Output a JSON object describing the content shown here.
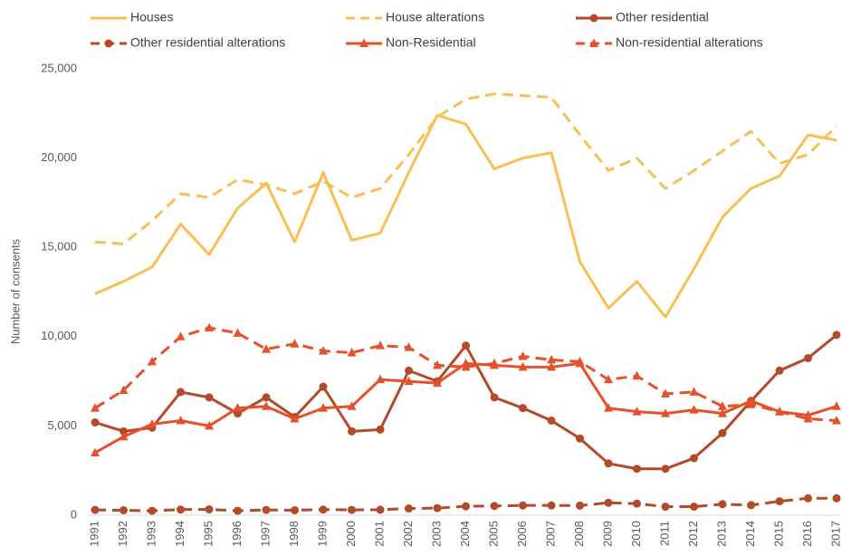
{
  "chart_data": {
    "type": "line",
    "y_label": "Number of consents",
    "categories": [
      "1991",
      "1992",
      "1993",
      "1994",
      "1995",
      "1996",
      "1997",
      "1998",
      "1999",
      "2000",
      "2001",
      "2002",
      "2003",
      "2004",
      "2005",
      "2006",
      "2007",
      "2008",
      "2009",
      "2010",
      "2011",
      "2012",
      "2013",
      "2014",
      "2015",
      "2016",
      "2017"
    ],
    "ylim": [
      0,
      25000
    ],
    "yticks": [
      0,
      {
        "value": 5000,
        "label": "5,000"
      },
      {
        "value": 10000,
        "label": "10,000"
      },
      {
        "value": 15000,
        "label": "15,000"
      },
      {
        "value": 20000,
        "label": "20,000"
      },
      {
        "value": 25000,
        "label": "25,000"
      }
    ],
    "grid": false,
    "legend": "top",
    "series": [
      {
        "name": "Houses",
        "color": "#f9bf55",
        "dashed": false,
        "marker": null,
        "values": [
          12400,
          13100,
          13900,
          16300,
          14600,
          17200,
          18600,
          15300,
          19200,
          15400,
          15800,
          19200,
          22400,
          21900,
          19400,
          20000,
          20300,
          14200,
          11600,
          13100,
          11100,
          13800,
          16700,
          18300,
          19000,
          21300,
          21000
        ]
      },
      {
        "name": "House alterations",
        "color": "#f9bf55",
        "dashed": true,
        "marker": null,
        "values": [
          15300,
          15200,
          16500,
          18000,
          17800,
          18800,
          18500,
          18000,
          18700,
          17800,
          18300,
          20200,
          22300,
          23300,
          23600,
          23500,
          23400,
          21300,
          19300,
          20000,
          18300,
          19300,
          20400,
          21500,
          19700,
          20200,
          21800
        ]
      },
      {
        "name": "Other residential",
        "color": "#b34a2a",
        "dashed": false,
        "marker": "circle",
        "values": [
          5200,
          4700,
          4900,
          6900,
          6600,
          5700,
          6600,
          5500,
          7200,
          4700,
          4800,
          8100,
          7500,
          9500,
          6600,
          6000,
          5300,
          4300,
          2900,
          2600,
          2600,
          3200,
          4600,
          6400,
          8100,
          8800,
          10100
        ]
      },
      {
        "name": "Other residential alterations",
        "color": "#b34a2a",
        "dashed": true,
        "marker": "circle",
        "values": [
          300,
          280,
          250,
          320,
          330,
          250,
          300,
          280,
          320,
          300,
          310,
          380,
          400,
          500,
          520,
          550,
          550,
          540,
          700,
          650,
          480,
          480,
          620,
          570,
          780,
          950,
          950
        ]
      },
      {
        "name": "Non-Residential",
        "color": "#e4512b",
        "dashed": false,
        "marker": "triangle",
        "values": [
          3500,
          4400,
          5100,
          5300,
          5000,
          6000,
          6100,
          5400,
          6000,
          6100,
          7600,
          7500,
          7400,
          8500,
          8400,
          8300,
          8300,
          8500,
          6000,
          5800,
          5700,
          5900,
          5700,
          6400,
          5800,
          5600,
          6100
        ]
      },
      {
        "name": "Non-residential alterations",
        "color": "#e4512b",
        "dashed": true,
        "marker": "triangle",
        "values": [
          6000,
          7000,
          8600,
          10000,
          10500,
          10200,
          9300,
          9600,
          9200,
          9100,
          9500,
          9400,
          8400,
          8300,
          8500,
          8900,
          8700,
          8600,
          7600,
          7800,
          6800,
          6900,
          6100,
          6200,
          5800,
          5400,
          5300
        ]
      }
    ]
  }
}
